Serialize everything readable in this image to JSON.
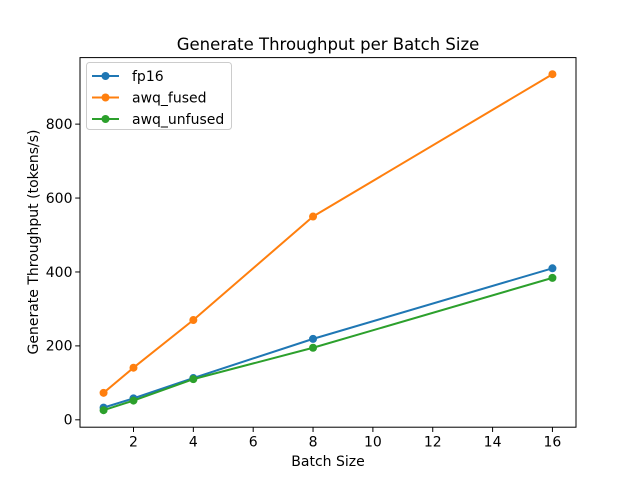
{
  "chart_data": {
    "type": "line",
    "title": "Generate Throughput per Batch Size",
    "xlabel": "Batch Size",
    "ylabel": "Generate Throughput (tokens/s)",
    "x": [
      1,
      2,
      4,
      8,
      16
    ],
    "series": [
      {
        "name": "fp16",
        "color": "#1f77b4",
        "values": [
          33,
          58,
          113,
          219,
          410
        ]
      },
      {
        "name": "awq_fused",
        "color": "#ff7f0e",
        "values": [
          73,
          141,
          270,
          550,
          935
        ]
      },
      {
        "name": "awq_unfused",
        "color": "#2ca02c",
        "values": [
          26,
          52,
          110,
          195,
          384
        ]
      }
    ],
    "xticks": [
      2,
      4,
      6,
      8,
      10,
      12,
      14,
      16
    ],
    "yticks": [
      0,
      200,
      400,
      600,
      800
    ],
    "xlim": [
      0.2125,
      16.7875
    ],
    "ylim": [
      -20,
      980
    ],
    "grid": false,
    "legend_position": "upper left",
    "marker": "o",
    "axis_color": "#000000"
  }
}
